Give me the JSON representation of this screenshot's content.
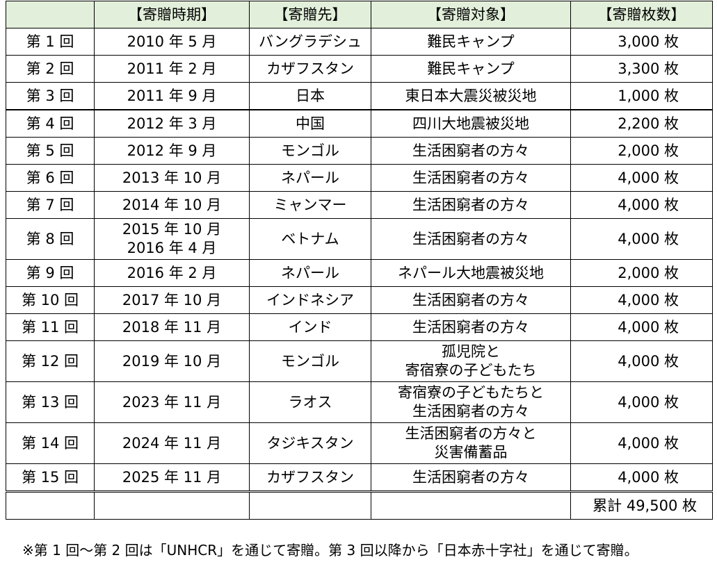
{
  "headers": {
    "round": "",
    "period": "【寄贈時期】",
    "destination": "【寄贈先】",
    "target": "【寄贈対象】",
    "sheets": "【寄贈枚数】"
  },
  "rows": [
    {
      "round": "第 1 回",
      "period": [
        "2010 年  5 月"
      ],
      "destination": "バングラデシュ",
      "target": [
        "難民キャンプ"
      ],
      "sheets": "3,000 枚"
    },
    {
      "round": "第 2 回",
      "period": [
        "2011 年  2 月"
      ],
      "destination": "カザフスタン",
      "target": [
        "難民キャンプ"
      ],
      "sheets": "3,300 枚"
    },
    {
      "round": "第 3 回",
      "period": [
        "2011 年  9 月"
      ],
      "destination": "日本",
      "target": [
        "東日本大震災被災地"
      ],
      "sheets": "1,000 枚"
    },
    {
      "round": "第 4 回",
      "period": [
        "2012 年  3 月"
      ],
      "destination": "中国",
      "target": [
        "四川大地震被災地"
      ],
      "sheets": "2,200 枚"
    },
    {
      "round": "第 5 回",
      "period": [
        "2012 年  9 月"
      ],
      "destination": "モンゴル",
      "target": [
        "生活困窮者の方々"
      ],
      "sheets": "2,000 枚"
    },
    {
      "round": "第 6 回",
      "period": [
        "2013 年 10 月"
      ],
      "destination": "ネパール",
      "target": [
        "生活困窮者の方々"
      ],
      "sheets": "4,000 枚"
    },
    {
      "round": "第 7 回",
      "period": [
        "2014 年 10 月"
      ],
      "destination": "ミャンマー",
      "target": [
        "生活困窮者の方々"
      ],
      "sheets": "4,000 枚"
    },
    {
      "round": "第 8 回",
      "period": [
        "2015 年 10 月",
        "2016 年  4 月"
      ],
      "destination": "ベトナム",
      "target": [
        "生活困窮者の方々"
      ],
      "sheets": "4,000 枚"
    },
    {
      "round": "第 9 回",
      "period": [
        "2016 年  2 月"
      ],
      "destination": "ネパール",
      "target": [
        "ネパール大地震被災地"
      ],
      "sheets": "2,000 枚"
    },
    {
      "round": "第 10 回",
      "period": [
        "2017 年 10 月"
      ],
      "destination": "インドネシア",
      "target": [
        "生活困窮者の方々"
      ],
      "sheets": "4,000 枚"
    },
    {
      "round": "第 11 回",
      "period": [
        "2018 年 11 月"
      ],
      "destination": "インド",
      "target": [
        "生活困窮者の方々"
      ],
      "sheets": "4,000 枚"
    },
    {
      "round": "第 12 回",
      "period": [
        "2019 年 10 月"
      ],
      "destination": "モンゴル",
      "target": [
        "孤児院と",
        "寄宿寮の子どもたち"
      ],
      "sheets": "4,000 枚"
    },
    {
      "round": "第 13 回",
      "period": [
        "2023 年 11 月"
      ],
      "destination": "ラオス",
      "target": [
        "寄宿寮の子どもたちと",
        "生活困窮者の方々"
      ],
      "sheets": "4,000 枚"
    },
    {
      "round": "第 14 回",
      "period": [
        "2024 年 11 月"
      ],
      "destination": "タジキスタン",
      "target": [
        "生活困窮者の方々と",
        "災害備蓄品"
      ],
      "sheets": "4,000 枚"
    },
    {
      "round": "第 15 回",
      "period": [
        "2025 年 11 月"
      ],
      "destination": "カザフスタン",
      "target": [
        "生活困窮者の方々"
      ],
      "sheets": "4,000 枚"
    }
  ],
  "total": "累計 49,500 枚",
  "footnote": "※第 1 回～第 2 回は「UNHCR」を通じて寄贈。第 3 回以降から「日本赤十字社」を通じて寄贈。"
}
